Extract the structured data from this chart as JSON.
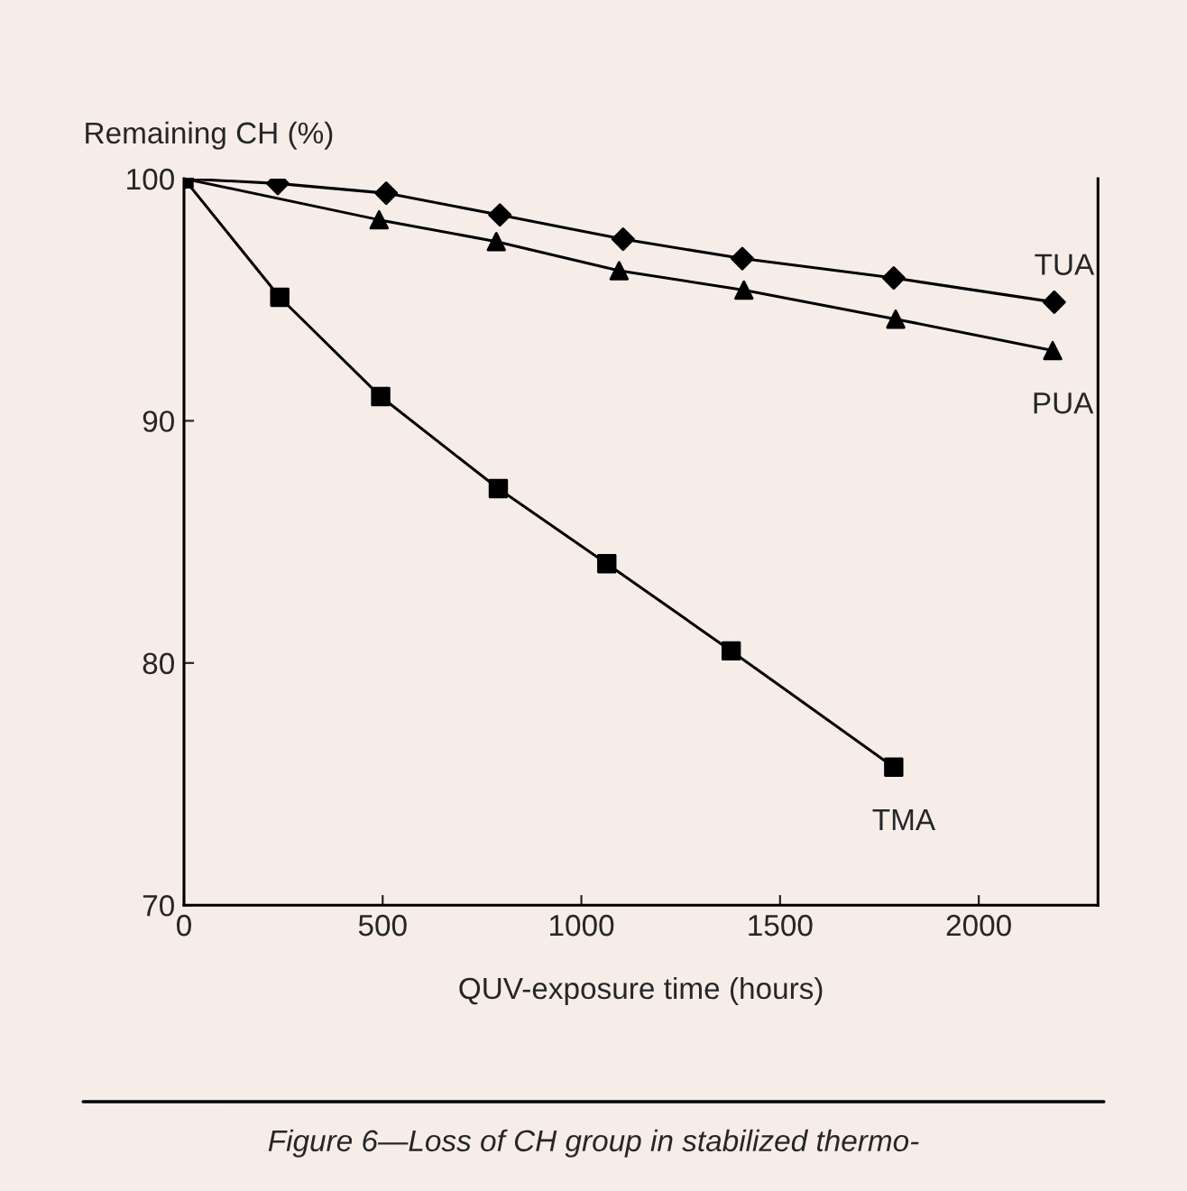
{
  "chart_data": {
    "type": "line",
    "ylabel": "Remaining CH (%)",
    "xlabel": "QUV-exposure time (hours)",
    "xlim": [
      0,
      2300
    ],
    "ylim": [
      70,
      100
    ],
    "xticks": [
      0,
      500,
      1000,
      1500,
      2000
    ],
    "yticks": [
      70,
      80,
      90,
      100
    ],
    "grid": false,
    "series": [
      {
        "name": "TUA",
        "color": "#000000",
        "marker": "diamond",
        "x": [
          0,
          236,
          509,
          795,
          1105,
          1405,
          1786,
          2190
        ],
        "values": [
          100,
          99.8,
          99.4,
          98.5,
          97.5,
          96.7,
          95.9,
          94.9
        ]
      },
      {
        "name": "PUA",
        "color": "#000000",
        "marker": "triangle",
        "x": [
          0,
          491,
          786,
          1095,
          1409,
          1791,
          2186
        ],
        "values": [
          100,
          98.3,
          97.4,
          96.2,
          95.4,
          94.2,
          92.9
        ]
      },
      {
        "name": "TMA",
        "color": "#000000",
        "marker": "square",
        "x": [
          0,
          241,
          495,
          791,
          1064,
          1377,
          1786
        ],
        "values": [
          100,
          95.1,
          91.0,
          87.2,
          84.1,
          80.5,
          75.7
        ]
      }
    ],
    "annotations": [
      "Figure 6—Loss of CH group in stabilized thermo-"
    ]
  }
}
